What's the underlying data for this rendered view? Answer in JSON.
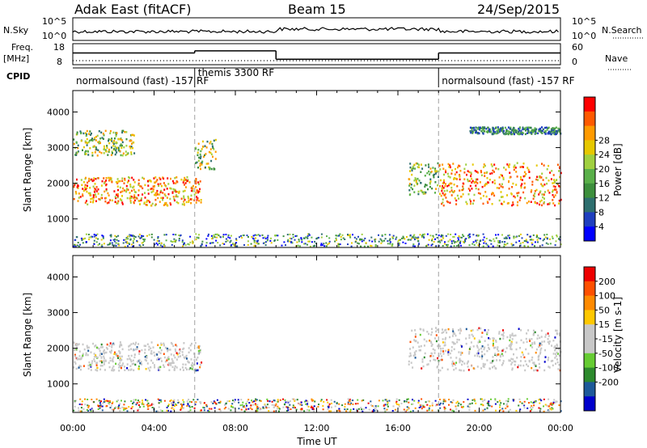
{
  "header": {
    "radar": "Adak East (fitACF)",
    "beam": "Beam 15",
    "date": "24/Sep/2015"
  },
  "top_panels": {
    "nsky_label": "N.Sky",
    "nsky_ticks": [
      "10^5",
      "10^0"
    ],
    "nsearch_label": "N.Search",
    "nsearch_ticks": [
      "10^5",
      "10^0"
    ],
    "freq_label": "Freq.",
    "freq_unit": "[MHz]",
    "freq_ticks": [
      "18",
      "8"
    ],
    "nave_label": "Nave",
    "nave_ticks": [
      "60",
      "0"
    ],
    "cpid_label": "CPID",
    "cpid_segments": [
      {
        "label": "normalsound (fast) -157 RF",
        "start_h": 0,
        "end_h": 6.0
      },
      {
        "label": "themis 3300 RF",
        "start_h": 6.0,
        "end_h": 18.0
      },
      {
        "label": "normalsound (fast) -157 RF",
        "start_h": 18.0,
        "end_h": 24
      }
    ],
    "freq_series": [
      {
        "start_h": 0,
        "end_h": 6.0,
        "value": 13.6
      },
      {
        "start_h": 6.0,
        "end_h": 10.0,
        "value": 14.6
      },
      {
        "start_h": 10.0,
        "end_h": 18.0,
        "value": 10.6
      },
      {
        "start_h": 18.0,
        "end_h": 24,
        "value": 13.6
      }
    ]
  },
  "colors": {
    "power": [
      "#0000ff",
      "#1f3fbf",
      "#2e6f6f",
      "#3d8f3d",
      "#5ab04a",
      "#a0d040",
      "#e6c800",
      "#ff9a00",
      "#ff5a00",
      "#ff0000"
    ],
    "velocity": [
      "#ee0000",
      "#ff5000",
      "#ff8a00",
      "#ffc800",
      "#c8c8c8",
      "#c8c8c8",
      "#66cc33",
      "#2d8a2d",
      "#1e5a9a",
      "#0000cc"
    ],
    "dashed_line": "#a0a0a0"
  },
  "chart_data": [
    {
      "type": "heatmap",
      "title": "",
      "ylabel": "Slant Range [km]",
      "xlabel": "",
      "ylim": [
        200,
        4600
      ],
      "xlim": [
        0,
        24
      ],
      "yticks": [
        "1000",
        "2000",
        "3000",
        "4000"
      ],
      "colorbar_label": "Power [dB]",
      "colorbar_ticks": [
        "4",
        "8",
        "12",
        "16",
        "20",
        "24",
        "28"
      ],
      "regions": [
        {
          "start_h": 0.0,
          "end_h": 6.3,
          "range_lo": 1400,
          "range_hi": 2200,
          "level": "high"
        },
        {
          "start_h": 0.0,
          "end_h": 3.0,
          "range_lo": 2800,
          "range_hi": 3500,
          "level": "mid"
        },
        {
          "start_h": 6.0,
          "end_h": 7.0,
          "range_lo": 2400,
          "range_hi": 3300,
          "level": "mid"
        },
        {
          "start_h": 16.5,
          "end_h": 18.0,
          "range_lo": 1700,
          "range_hi": 2600,
          "level": "mid"
        },
        {
          "start_h": 18.0,
          "end_h": 24.0,
          "range_lo": 1400,
          "range_hi": 2600,
          "level": "high"
        },
        {
          "start_h": 19.5,
          "end_h": 24.0,
          "range_lo": 3400,
          "range_hi": 3600,
          "level": "low"
        }
      ]
    },
    {
      "type": "heatmap",
      "title": "",
      "ylabel": "Slant Range [km]",
      "xlabel": "Time UT",
      "ylim": [
        200,
        4600
      ],
      "xlim": [
        0,
        24
      ],
      "xticks": [
        "00:00",
        "04:00",
        "08:00",
        "12:00",
        "16:00",
        "20:00",
        "00:00"
      ],
      "yticks": [
        "1000",
        "2000",
        "3000",
        "4000"
      ],
      "colorbar_label": "Velocity [m s-1]",
      "colorbar_ticks": [
        "200",
        "100",
        "50",
        "15",
        "-15",
        "-50",
        "-100",
        "-200"
      ],
      "regions": [
        {
          "start_h": 0.0,
          "end_h": 6.3,
          "range_lo": 1400,
          "range_hi": 2200,
          "level": "zero"
        },
        {
          "start_h": 16.5,
          "end_h": 24.0,
          "range_lo": 1400,
          "range_hi": 2600,
          "level": "zero"
        }
      ]
    }
  ]
}
